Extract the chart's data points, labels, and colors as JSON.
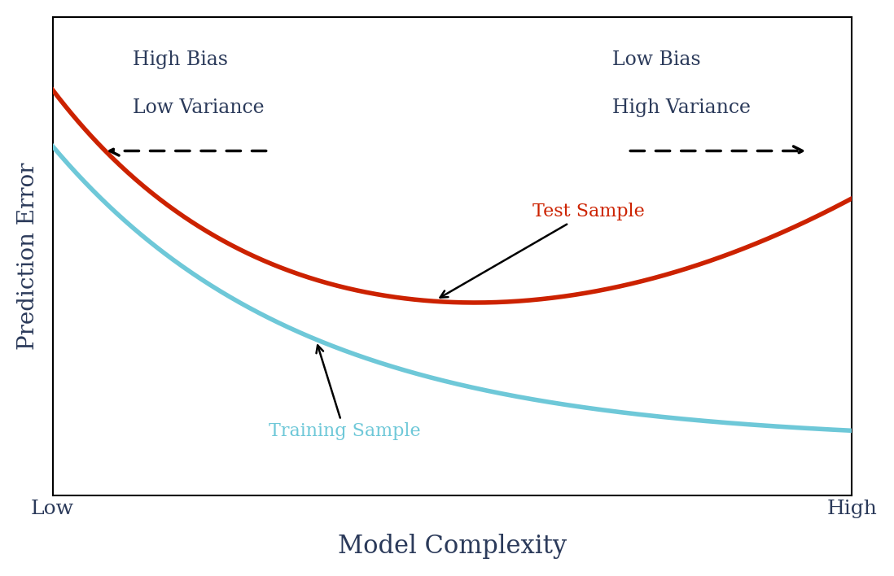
{
  "xlabel": "Model Complexity",
  "ylabel": "Prediction Error",
  "xlabel_fontsize": 22,
  "ylabel_fontsize": 20,
  "tick_label_fontsize": 18,
  "x_tick_labels": [
    "Low",
    "High"
  ],
  "test_color": "#CC2200",
  "train_color": "#6EC8D8",
  "line_width": 4.0,
  "high_bias_text1": "High Bias",
  "high_bias_text2": "Low Variance",
  "low_bias_text1": "Low Bias",
  "low_bias_text2": "High Variance",
  "test_label": "Test Sample",
  "train_label": "Training Sample",
  "background_color": "#ffffff",
  "annotation_fontsize": 16,
  "bias_fontsize": 17,
  "text_color": "#2B3A5A"
}
